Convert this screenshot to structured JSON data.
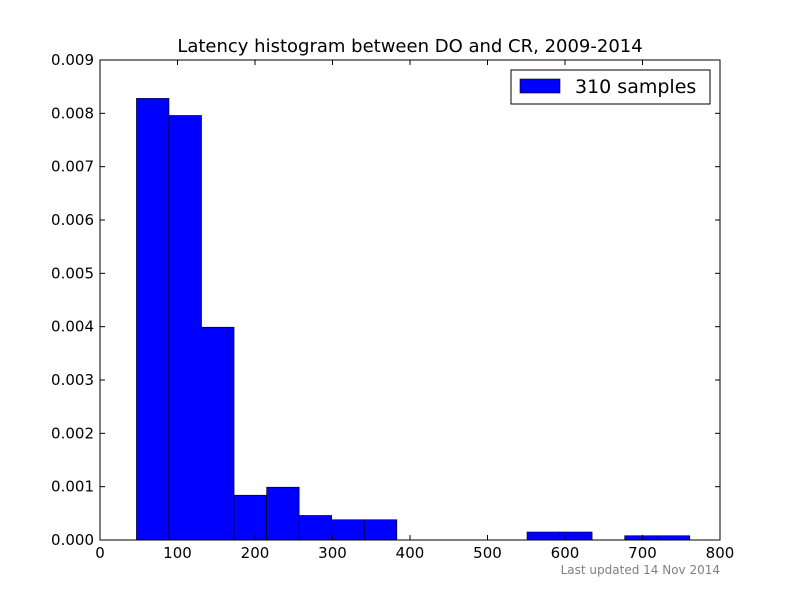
{
  "chart_data": {
    "type": "bar",
    "title": "Latency histogram between DO and CR, 2009-2014",
    "xlabel": "",
    "ylabel": "",
    "xlim": [
      0,
      800
    ],
    "ylim": [
      0,
      0.009
    ],
    "x_ticks": [
      0,
      100,
      200,
      300,
      400,
      500,
      600,
      700,
      800
    ],
    "x_tick_labels": [
      "0",
      "100",
      "200",
      "300",
      "400",
      "500",
      "600",
      "700",
      "800"
    ],
    "y_ticks": [
      0,
      0.001,
      0.002,
      0.003,
      0.004,
      0.005,
      0.006,
      0.007,
      0.008,
      0.009
    ],
    "y_tick_labels": [
      "0.000",
      "0.001",
      "0.002",
      "0.003",
      "0.004",
      "0.005",
      "0.006",
      "0.007",
      "0.008",
      "0.009"
    ],
    "bins": [
      [
        47,
        89,
        0.00828
      ],
      [
        89,
        131,
        0.00796
      ],
      [
        131,
        173,
        0.00399
      ],
      [
        173,
        215,
        0.00084
      ],
      [
        215,
        257,
        0.00099
      ],
      [
        257,
        299,
        0.00046
      ],
      [
        299,
        341,
        0.00038
      ],
      [
        341,
        383,
        0.00038
      ],
      [
        383,
        425,
        0
      ],
      [
        425,
        467,
        0
      ],
      [
        467,
        509,
        0
      ],
      [
        509,
        551,
        0
      ],
      [
        551,
        593,
        0.00015
      ],
      [
        593,
        635,
        0.00015
      ],
      [
        635,
        677,
        0
      ],
      [
        677,
        719,
        8e-05
      ],
      [
        719,
        761,
        8e-05
      ]
    ],
    "series": [
      {
        "name": "310 samples",
        "color": "#0000ff"
      }
    ],
    "legend_position": "top-right",
    "grid": false
  },
  "footnote": "Last updated 14 Nov 2014"
}
